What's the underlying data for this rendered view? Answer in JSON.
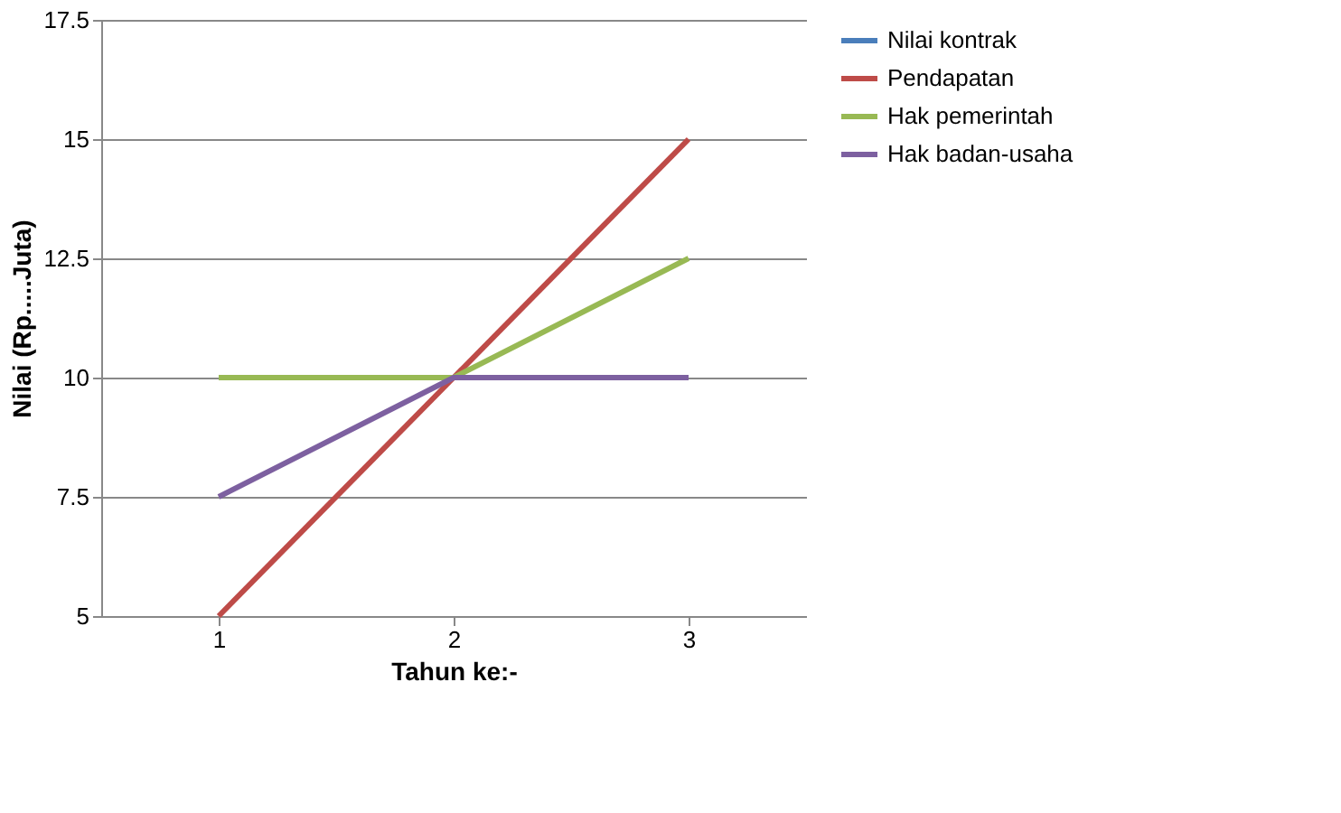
{
  "chart_data": {
    "type": "line",
    "xlabel": "Tahun ke:-",
    "ylabel": "Nilai (Rp.....Juta)",
    "categories": [
      "1",
      "2",
      "3"
    ],
    "series": [
      {
        "name": "Nilai kontrak",
        "color": "#4a7ebb",
        "values": [
          null,
          null,
          null
        ]
      },
      {
        "name": "Pendapatan",
        "color": "#be4b48",
        "values": [
          5,
          10,
          15
        ]
      },
      {
        "name": "Hak pemerintah",
        "color": "#98b954",
        "values": [
          10,
          10,
          12.5
        ]
      },
      {
        "name": "Hak badan-usaha",
        "color": "#7d60a0",
        "values": [
          7.5,
          10,
          10
        ]
      }
    ],
    "ylim": [
      5,
      17.5
    ],
    "yticks": [
      5,
      7.5,
      10,
      12.5,
      15,
      17.5
    ],
    "grid": "y",
    "legend": "right",
    "marker": "none",
    "line_style": "solid"
  }
}
